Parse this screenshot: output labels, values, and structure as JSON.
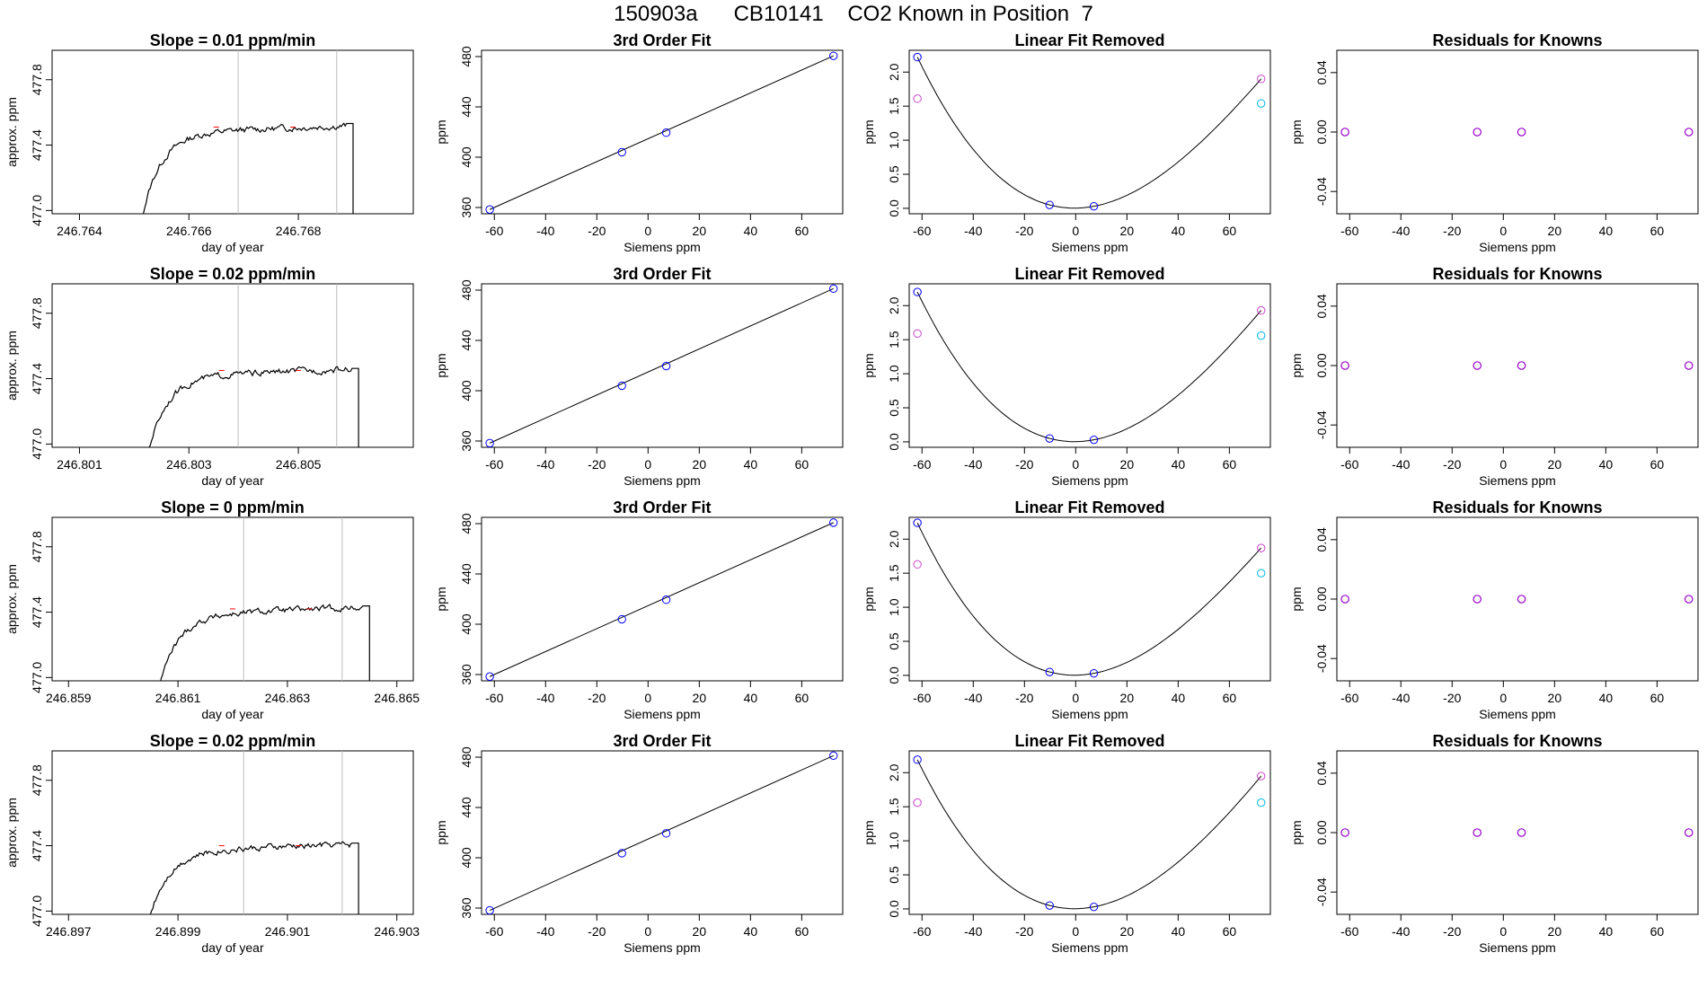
{
  "page_title": "150903a      CB10141    CO2 Known in Position  7",
  "colors": {
    "trace": "#000000",
    "window_line": "#bebebe",
    "trace_marker": "#ff0000",
    "blue_point": "#0000ff",
    "magenta_point": "#cc44cc",
    "cyan_point": "#00b8e6",
    "purple_point": "#9900cc"
  },
  "chart_data": [
    {
      "type": "line",
      "title": "Slope =  0.01  ppm/min",
      "xlabel": "day of year",
      "ylabel": "approx. ppm",
      "xlim": [
        246.7635,
        246.7701
      ],
      "ylim": [
        476.98,
        477.98
      ],
      "xticks": [
        "246.764",
        "246.766",
        "246.768"
      ],
      "xtick_values": [
        246.764,
        246.766,
        246.768
      ],
      "yticks": [
        "477.0",
        "477.4",
        "477.8"
      ],
      "ytick_values": [
        477.0,
        477.4,
        477.8
      ],
      "window_lines": [
        246.7669,
        246.7687
      ],
      "trace": {
        "start": 246.765,
        "end": 246.769,
        "plateau": 477.47,
        "jump": [
          246.7662,
          246.7676
        ],
        "drift": 0.05
      }
    },
    {
      "type": "scatter",
      "title": "3rd Order Fit",
      "xlabel": "Siemens ppm",
      "ylabel": "ppm",
      "xlim": [
        -65,
        76
      ],
      "ylim": [
        355,
        485
      ],
      "xticks": [
        "-60",
        "-40",
        "-20",
        "0",
        "20",
        "40",
        "60"
      ],
      "xtick_values": [
        -60,
        -40,
        -20,
        0,
        20,
        40,
        60
      ],
      "yticks": [
        "360",
        "400",
        "440",
        "480"
      ],
      "ytick_values": [
        360,
        400,
        440,
        480
      ],
      "series": [
        {
          "x": [
            -61.8,
            -10.2,
            7.1,
            72.4
          ],
          "y": [
            358.4,
            404.0,
            419.5,
            480.6
          ]
        }
      ],
      "fit_line": {
        "x": [
          -61.8,
          72.4
        ],
        "y": [
          358.4,
          480.6
        ]
      }
    },
    {
      "type": "scatter",
      "title": "Linear Fit Removed",
      "xlabel": "Siemens ppm",
      "ylabel": "ppm",
      "xlim": [
        -65,
        76
      ],
      "ylim": [
        -0.08,
        2.32
      ],
      "xticks": [
        "-60",
        "-40",
        "-20",
        "0",
        "20",
        "40",
        "60"
      ],
      "xtick_values": [
        -60,
        -40,
        -20,
        0,
        20,
        40,
        60
      ],
      "yticks": [
        "0.0",
        "0.5",
        "1.0",
        "1.5",
        "2.0"
      ],
      "ytick_values": [
        0,
        0.5,
        1.0,
        1.5,
        2.0
      ],
      "curve_points": [
        [
          -61.8,
          2.22
        ],
        [
          -10.2,
          0.05
        ],
        [
          7.1,
          0.03
        ],
        [
          72.4,
          1.9
        ]
      ],
      "blue": [
        [
          -61.8,
          2.22
        ],
        [
          -10.2,
          0.05
        ],
        [
          7.1,
          0.03
        ]
      ],
      "magenta": [
        [
          -61.8,
          1.61
        ],
        [
          72.4,
          1.9
        ]
      ],
      "cyan": [
        [
          72.4,
          1.54
        ]
      ]
    },
    {
      "type": "scatter",
      "title": "Residuals for Knowns",
      "xlabel": "Siemens ppm",
      "ylabel": "ppm",
      "xlim": [
        -65,
        76
      ],
      "ylim": [
        -0.055,
        0.055
      ],
      "xticks": [
        "-60",
        "-40",
        "-20",
        "0",
        "20",
        "40",
        "60"
      ],
      "xtick_values": [
        -60,
        -40,
        -20,
        0,
        20,
        40,
        60
      ],
      "yticks": [
        "-0.04",
        "0.00",
        "0.04"
      ],
      "ytick_values": [
        -0.04,
        0,
        0.04
      ],
      "series": [
        {
          "x": [
            -61.8,
            -10.2,
            7.1,
            72.4
          ],
          "y": [
            0,
            0,
            0,
            0
          ]
        }
      ]
    },
    {
      "type": "line",
      "title": "Slope =  0.02  ppm/min",
      "xlabel": "day of year",
      "ylabel": "approx. ppm",
      "xlim": [
        246.8005,
        246.8071
      ],
      "ylim": [
        476.98,
        477.98
      ],
      "xticks": [
        "246.801",
        "246.803",
        "246.805"
      ],
      "xtick_values": [
        246.801,
        246.803,
        246.805
      ],
      "yticks": [
        "477.0",
        "477.4",
        "477.8"
      ],
      "ytick_values": [
        477.0,
        477.4,
        477.8
      ],
      "window_lines": [
        246.8039,
        246.8057
      ],
      "trace": {
        "start": 246.8021,
        "end": 246.8061,
        "plateau": 477.41,
        "jump": [
          246.8033,
          246.8047
        ],
        "drift": 0.05
      }
    },
    {
      "type": "scatter",
      "title": "3rd Order Fit",
      "xlabel": "Siemens ppm",
      "ylabel": "ppm",
      "xlim": [
        -65,
        76
      ],
      "ylim": [
        355,
        485
      ],
      "xticks": [
        "-60",
        "-40",
        "-20",
        "0",
        "20",
        "40",
        "60"
      ],
      "xtick_values": [
        -60,
        -40,
        -20,
        0,
        20,
        40,
        60
      ],
      "yticks": [
        "360",
        "400",
        "440",
        "480"
      ],
      "ytick_values": [
        360,
        400,
        440,
        480
      ],
      "series": [
        {
          "x": [
            -61.8,
            -10.2,
            7.1,
            72.4
          ],
          "y": [
            358.3,
            404.0,
            419.6,
            481.2
          ]
        }
      ],
      "fit_line": {
        "x": [
          -61.8,
          72.4
        ],
        "y": [
          358.3,
          481.2
        ]
      }
    },
    {
      "type": "scatter",
      "title": "Linear Fit Removed",
      "xlabel": "Siemens ppm",
      "ylabel": "ppm",
      "xlim": [
        -65,
        76
      ],
      "ylim": [
        -0.08,
        2.32
      ],
      "xticks": [
        "-60",
        "-40",
        "-20",
        "0",
        "20",
        "40",
        "60"
      ],
      "xtick_values": [
        -60,
        -40,
        -20,
        0,
        20,
        40,
        60
      ],
      "yticks": [
        "0.0",
        "0.5",
        "1.0",
        "1.5",
        "2.0"
      ],
      "ytick_values": [
        0,
        0.5,
        1.0,
        1.5,
        2.0
      ],
      "curve_points": [
        [
          -61.8,
          2.2
        ],
        [
          -10.2,
          0.05
        ],
        [
          7.1,
          0.03
        ],
        [
          72.4,
          1.93
        ]
      ],
      "blue": [
        [
          -61.8,
          2.2
        ],
        [
          -10.2,
          0.05
        ],
        [
          7.1,
          0.03
        ]
      ],
      "magenta": [
        [
          -61.8,
          1.59
        ],
        [
          72.4,
          1.93
        ]
      ],
      "cyan": [
        [
          72.4,
          1.56
        ]
      ]
    },
    {
      "type": "scatter",
      "title": "Residuals for Knowns",
      "xlabel": "Siemens ppm",
      "ylabel": "ppm",
      "xlim": [
        -65,
        76
      ],
      "ylim": [
        -0.055,
        0.055
      ],
      "xticks": [
        "-60",
        "-40",
        "-20",
        "0",
        "20",
        "40",
        "60"
      ],
      "xtick_values": [
        -60,
        -40,
        -20,
        0,
        20,
        40,
        60
      ],
      "yticks": [
        "-0.04",
        "0.00",
        "0.04"
      ],
      "ytick_values": [
        -0.04,
        0,
        0.04
      ],
      "series": [
        {
          "x": [
            -61.8,
            -10.2,
            7.1,
            72.4
          ],
          "y": [
            0,
            0,
            0,
            0
          ]
        }
      ]
    },
    {
      "type": "line",
      "title": "Slope =  0  ppm/min",
      "xlabel": "day of year",
      "ylabel": "approx. ppm",
      "xlim": [
        246.8587,
        246.8653
      ],
      "ylim": [
        476.98,
        477.98
      ],
      "xticks": [
        "246.859",
        "246.861",
        "246.863",
        "246.865"
      ],
      "xtick_values": [
        246.859,
        246.861,
        246.863,
        246.865
      ],
      "yticks": [
        "477.0",
        "477.4",
        "477.8"
      ],
      "ytick_values": [
        477.0,
        477.4,
        477.8
      ],
      "window_lines": [
        246.8622,
        246.864
      ],
      "trace": {
        "start": 246.8605,
        "end": 246.8645,
        "plateau": 477.38,
        "jump": [
          246.8617,
          246.8631
        ],
        "drift": 0.05
      }
    },
    {
      "type": "scatter",
      "title": "3rd Order Fit",
      "xlabel": "Siemens ppm",
      "ylabel": "ppm",
      "xlim": [
        -65,
        76
      ],
      "ylim": [
        355,
        485
      ],
      "xticks": [
        "-60",
        "-40",
        "-20",
        "0",
        "20",
        "40",
        "60"
      ],
      "xtick_values": [
        -60,
        -40,
        -20,
        0,
        20,
        40,
        60
      ],
      "yticks": [
        "360",
        "400",
        "440",
        "480"
      ],
      "ytick_values": [
        360,
        400,
        440,
        480
      ],
      "series": [
        {
          "x": [
            -61.8,
            -10.2,
            7.1,
            72.4
          ],
          "y": [
            358.4,
            404.0,
            419.5,
            480.8
          ]
        }
      ],
      "fit_line": {
        "x": [
          -61.8,
          72.4
        ],
        "y": [
          358.4,
          480.8
        ]
      }
    },
    {
      "type": "scatter",
      "title": "Linear Fit Removed",
      "xlabel": "Siemens ppm",
      "ylabel": "ppm",
      "xlim": [
        -65,
        76
      ],
      "ylim": [
        -0.08,
        2.32
      ],
      "xticks": [
        "-60",
        "-40",
        "-20",
        "0",
        "20",
        "40",
        "60"
      ],
      "xtick_values": [
        -60,
        -40,
        -20,
        0,
        20,
        40,
        60
      ],
      "yticks": [
        "0.0",
        "0.5",
        "1.0",
        "1.5",
        "2.0"
      ],
      "ytick_values": [
        0,
        0.5,
        1.0,
        1.5,
        2.0
      ],
      "curve_points": [
        [
          -61.8,
          2.24
        ],
        [
          -10.2,
          0.05
        ],
        [
          7.1,
          0.03
        ],
        [
          72.4,
          1.87
        ]
      ],
      "blue": [
        [
          -61.8,
          2.24
        ],
        [
          -10.2,
          0.05
        ],
        [
          7.1,
          0.03
        ]
      ],
      "magenta": [
        [
          -61.8,
          1.63
        ],
        [
          72.4,
          1.87
        ]
      ],
      "cyan": [
        [
          72.4,
          1.5
        ]
      ]
    },
    {
      "type": "scatter",
      "title": "Residuals for Knowns",
      "xlabel": "Siemens ppm",
      "ylabel": "ppm",
      "xlim": [
        -65,
        76
      ],
      "ylim": [
        -0.055,
        0.055
      ],
      "xticks": [
        "-60",
        "-40",
        "-20",
        "0",
        "20",
        "40",
        "60"
      ],
      "xtick_values": [
        -60,
        -40,
        -20,
        0,
        20,
        40,
        60
      ],
      "yticks": [
        "-0.04",
        "0.00",
        "0.04"
      ],
      "ytick_values": [
        -0.04,
        0,
        0.04
      ],
      "series": [
        {
          "x": [
            -61.8,
            -10.2,
            7.1,
            72.4
          ],
          "y": [
            0,
            0,
            0,
            0
          ]
        }
      ]
    },
    {
      "type": "line",
      "title": "Slope =  0.02  ppm/min",
      "xlabel": "day of year",
      "ylabel": "approx. ppm",
      "xlim": [
        246.8967,
        246.9033
      ],
      "ylim": [
        476.98,
        477.98
      ],
      "xticks": [
        "246.897",
        "246.899",
        "246.901",
        "246.903"
      ],
      "xtick_values": [
        246.897,
        246.899,
        246.901,
        246.903
      ],
      "yticks": [
        "477.0",
        "477.4",
        "477.8"
      ],
      "ytick_values": [
        477.0,
        477.4,
        477.8
      ],
      "window_lines": [
        246.9002,
        246.902
      ],
      "trace": {
        "start": 246.8983,
        "end": 246.9023,
        "plateau": 477.36,
        "jump": [
          246.8995,
          246.9009
        ],
        "drift": 0.05
      }
    },
    {
      "type": "scatter",
      "title": "3rd Order Fit",
      "xlabel": "Siemens ppm",
      "ylabel": "ppm",
      "xlim": [
        -65,
        76
      ],
      "ylim": [
        355,
        485
      ],
      "xticks": [
        "-60",
        "-40",
        "-20",
        "0",
        "20",
        "40",
        "60"
      ],
      "xtick_values": [
        -60,
        -40,
        -20,
        0,
        20,
        40,
        60
      ],
      "yticks": [
        "360",
        "400",
        "440",
        "480"
      ],
      "ytick_values": [
        360,
        400,
        440,
        480
      ],
      "series": [
        {
          "x": [
            -61.8,
            -10.2,
            7.1,
            72.4
          ],
          "y": [
            358.2,
            403.6,
            419.4,
            481.2
          ]
        }
      ],
      "fit_line": {
        "x": [
          -61.8,
          72.4
        ],
        "y": [
          358.2,
          481.2
        ]
      }
    },
    {
      "type": "scatter",
      "title": "Linear Fit Removed",
      "xlabel": "Siemens ppm",
      "ylabel": "ppm",
      "xlim": [
        -65,
        76
      ],
      "ylim": [
        -0.08,
        2.32
      ],
      "xticks": [
        "-60",
        "-40",
        "-20",
        "0",
        "20",
        "40",
        "60"
      ],
      "xtick_values": [
        -60,
        -40,
        -20,
        0,
        20,
        40,
        60
      ],
      "yticks": [
        "0.0",
        "0.5",
        "1.0",
        "1.5",
        "2.0"
      ],
      "ytick_values": [
        0,
        0.5,
        1.0,
        1.5,
        2.0
      ],
      "curve_points": [
        [
          -61.8,
          2.19
        ],
        [
          -10.2,
          0.05
        ],
        [
          7.1,
          0.03
        ],
        [
          72.4,
          1.95
        ]
      ],
      "blue": [
        [
          -61.8,
          2.19
        ],
        [
          -10.2,
          0.05
        ],
        [
          7.1,
          0.03
        ]
      ],
      "magenta": [
        [
          -61.8,
          1.56
        ],
        [
          72.4,
          1.95
        ]
      ],
      "cyan": [
        [
          72.4,
          1.56
        ]
      ]
    },
    {
      "type": "scatter",
      "title": "Residuals for Knowns",
      "xlabel": "Siemens ppm",
      "ylabel": "ppm",
      "xlim": [
        -65,
        76
      ],
      "ylim": [
        -0.055,
        0.055
      ],
      "xticks": [
        "-60",
        "-40",
        "-20",
        "0",
        "20",
        "40",
        "60"
      ],
      "xtick_values": [
        -60,
        -40,
        -20,
        0,
        20,
        40,
        60
      ],
      "yticks": [
        "-0.04",
        "0.00",
        "0.04"
      ],
      "ytick_values": [
        -0.04,
        0,
        0.04
      ],
      "series": [
        {
          "x": [
            -61.8,
            -10.2,
            7.1,
            72.4
          ],
          "y": [
            0,
            0,
            0,
            0
          ]
        }
      ]
    }
  ]
}
